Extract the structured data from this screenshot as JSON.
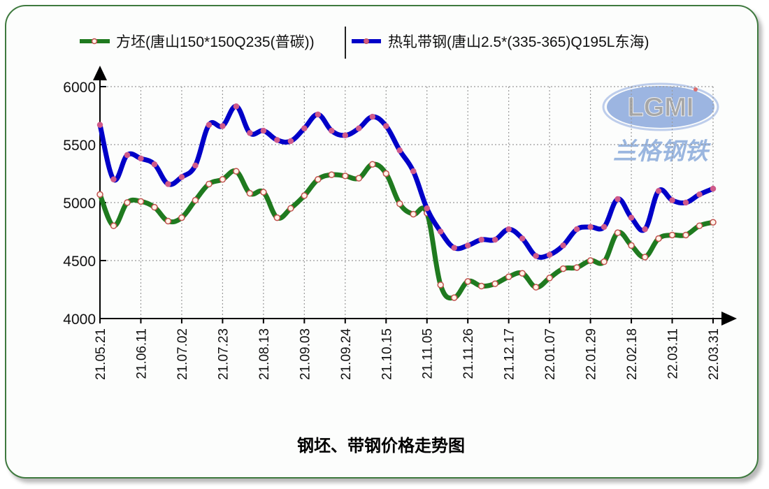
{
  "legend": {
    "series_a_label": "方坯(唐山150*150Q235(普碳))",
    "series_b_label": "热轧带钢(唐山2.5*(335-365)Q195L东海)"
  },
  "watermark": {
    "logo_text": "LGMI",
    "brand_text": "兰格钢铁"
  },
  "title": "钢坯、带钢价格走势图",
  "colors": {
    "series_a": "#1f7a1f",
    "series_b": "#0000c8",
    "marker_a_fill": "#fff3e8",
    "marker_a_stroke": "#c0504d",
    "marker_b_fill": "#d05a8a",
    "frame_border": "#3f7a3f",
    "grid": "#9a9a9a"
  },
  "chart_data": {
    "type": "line",
    "title": "钢坯、带钢价格走势图",
    "xlabel": "",
    "ylabel": "",
    "ylim": [
      4000,
      6000
    ],
    "yticks": [
      4000,
      4500,
      5000,
      5500,
      6000
    ],
    "grid": true,
    "legend_position": "top",
    "x_tick_labels": [
      "21.05.21",
      "21.06.11",
      "21.07.02",
      "21.07.23",
      "21.08.13",
      "21.09.03",
      "21.09.24",
      "21.10.15",
      "21.11.05",
      "21.11.26",
      "21.12.17",
      "22.01.07",
      "22.01.29",
      "22.02.18",
      "22.03.11",
      "22.03.31"
    ],
    "x_tick_index": [
      0,
      3,
      6,
      9,
      12,
      15,
      18,
      21,
      24,
      27,
      30,
      33,
      36,
      39,
      42,
      45
    ],
    "point_count": 46,
    "series": [
      {
        "name": "方坯(唐山150*150Q235(普碳))",
        "color": "#1f7a1f",
        "values": [
          5070,
          4800,
          5000,
          5010,
          4960,
          4840,
          4870,
          5020,
          5160,
          5200,
          5270,
          5080,
          5090,
          4870,
          4950,
          5060,
          5200,
          5240,
          5230,
          5210,
          5330,
          5250,
          4990,
          4900,
          4910,
          4290,
          4180,
          4320,
          4280,
          4300,
          4360,
          4390,
          4270,
          4350,
          4430,
          4440,
          4500,
          4490,
          4740,
          4630,
          4530,
          4690,
          4720,
          4720,
          4800,
          4830
        ]
      },
      {
        "name": "热轧带钢(唐山2.5*(335-365)Q195L东海)",
        "color": "#0000c8",
        "values": [
          5670,
          5200,
          5410,
          5380,
          5330,
          5160,
          5220,
          5320,
          5670,
          5660,
          5830,
          5600,
          5620,
          5540,
          5530,
          5640,
          5760,
          5620,
          5580,
          5640,
          5740,
          5660,
          5450,
          5270,
          4950,
          4750,
          4610,
          4630,
          4680,
          4680,
          4770,
          4690,
          4540,
          4550,
          4630,
          4770,
          4790,
          4790,
          5030,
          4870,
          4770,
          5100,
          5020,
          5000,
          5070,
          5120
        ]
      }
    ]
  }
}
